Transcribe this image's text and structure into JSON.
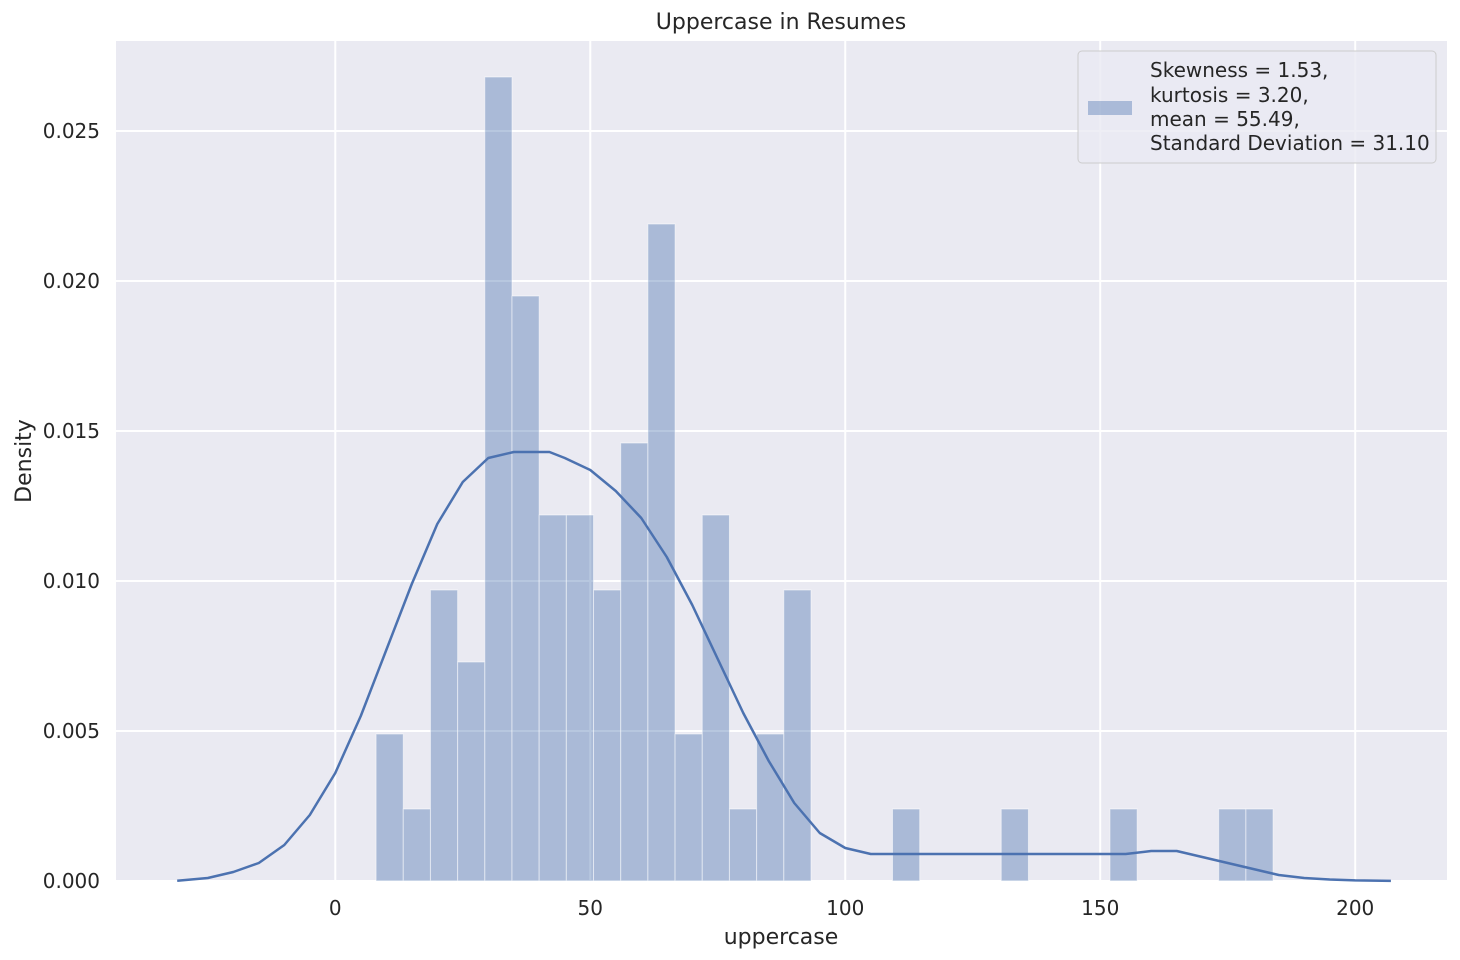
{
  "chart_data": {
    "type": "bar",
    "title": "Uppercase in Resumes",
    "xlabel": "uppercase",
    "ylabel": "Density",
    "xlim": [
      -43,
      218
    ],
    "ylim": [
      0,
      0.028
    ],
    "grid": true,
    "legend_position": "top-right",
    "xticks": [
      0,
      50,
      100,
      150,
      200
    ],
    "xtick_labels": [
      "0",
      "50",
      "100",
      "150",
      "200"
    ],
    "yticks": [
      0,
      0.005,
      0.01,
      0.015,
      0.02,
      0.025
    ],
    "ytick_labels": [
      "0.000",
      "0.005",
      "0.010",
      "0.015",
      "0.020",
      "0.025"
    ],
    "bins": {
      "start": 8,
      "width": 5.33,
      "values": [
        0.0049,
        0.0024,
        0.0097,
        0.0073,
        0.0268,
        0.0195,
        0.0122,
        0.0122,
        0.0097,
        0.0146,
        0.0219,
        0.0049,
        0.0122,
        0.0024,
        0.0049,
        0.0097,
        0,
        0,
        0,
        0.0024,
        0,
        0,
        0,
        0.0024,
        0,
        0,
        0,
        0.0024,
        0,
        0,
        0,
        0.0024,
        0.0024
      ]
    },
    "kde": {
      "x": [
        -31,
        -25,
        -20,
        -15,
        -10,
        -5,
        0,
        5,
        10,
        15,
        20,
        25,
        30,
        35,
        40,
        42,
        45,
        50,
        55,
        60,
        65,
        70,
        75,
        80,
        85,
        90,
        95,
        100,
        105,
        110,
        115,
        120,
        125,
        130,
        135,
        140,
        145,
        150,
        155,
        160,
        165,
        170,
        175,
        180,
        185,
        190,
        195,
        200,
        207
      ],
      "y": [
        1e-05,
        0.0001,
        0.0003,
        0.0006,
        0.0012,
        0.0022,
        0.0036,
        0.0055,
        0.0077,
        0.0099,
        0.0119,
        0.0133,
        0.0141,
        0.0143,
        0.0143,
        0.0143,
        0.0141,
        0.0137,
        0.013,
        0.0121,
        0.0108,
        0.0092,
        0.0074,
        0.0056,
        0.004,
        0.0026,
        0.0016,
        0.0011,
        0.0009,
        0.0009,
        0.0009,
        0.0009,
        0.0009,
        0.0009,
        0.0009,
        0.0009,
        0.0009,
        0.0009,
        0.0009,
        0.001,
        0.001,
        0.0008,
        0.0006,
        0.0004,
        0.0002,
        0.0001,
        5e-05,
        2e-05,
        5e-06
      ]
    },
    "legend": {
      "lines": [
        "Skewness = 1.53,",
        "kurtosis = 3.20,",
        "mean = 55.49,",
        "Standard Deviation = 31.10"
      ]
    },
    "colors": {
      "background": "#eaeaf2",
      "grid": "#ffffff",
      "bar_fill": "#4c72b0",
      "bar_opacity": 0.4,
      "kde_line": "#4c72b0",
      "text": "#262626"
    }
  }
}
